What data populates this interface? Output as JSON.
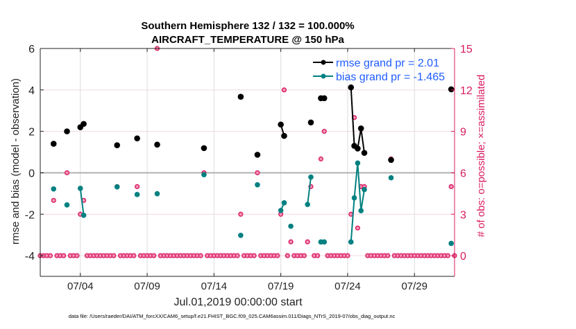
{
  "chart_data": {
    "type": "line",
    "title_line1": "Southern Hemisphere 132 / 132 = 100.000%",
    "title_line2": "AIRCRAFT_TEMPERATURE @ 150 hPa",
    "xlabel": "Jul.01,2019 00:00:00 start",
    "ylabel_left": "rmse and bias (model - observation)",
    "ylabel_right": "# of obs: o=possible; ×=assimilated",
    "footnote": "data file: /Users/raeder/DAI/ATM_forcXX/CAM6_setup/f.e21.FHIST_BGC.f09_025.CAM6assim.011/Diags_NTrS_2019-07/obs_diag_output.nc",
    "x_range": [
      "07/01 00",
      "08/01 00"
    ],
    "x_ticks": [
      "07/04",
      "07/09",
      "07/14",
      "07/19",
      "07/24",
      "07/29"
    ],
    "ylim_left": [
      -5,
      6
    ],
    "yticks_left": [
      "6",
      "4",
      "2",
      "0",
      "-2",
      "-4"
    ],
    "ylim_right": [
      -1.5,
      15
    ],
    "yticks_right": [
      "15",
      "12",
      "9",
      "6",
      "3",
      "0"
    ],
    "grid": true,
    "legend_position": "top-right",
    "colors": {
      "rmse": "#000000",
      "bias": "#008080",
      "obs": "#d81b60",
      "legend_text": "#1f5cff",
      "zero_line": "#b0b0b0"
    },
    "series": [
      {
        "name": "rmse grand pr = 2.01",
        "key": "rmse",
        "points": [
          [
            "07/02 00",
            1.4
          ],
          [
            "07/03 00",
            2.0
          ],
          [
            "07/04 00",
            2.2
          ],
          [
            "07/04 06",
            2.36
          ],
          [
            "07/06 18",
            1.33
          ],
          [
            "07/08 06",
            1.66
          ],
          [
            "07/09 18",
            1.36
          ],
          [
            "07/13 06",
            1.19
          ],
          [
            "07/16 00",
            3.67
          ],
          [
            "07/17 06",
            0.87
          ],
          [
            "07/19 00",
            2.33
          ],
          [
            "07/19 06",
            1.78
          ],
          [
            "07/21 06",
            2.43
          ],
          [
            "07/22 00",
            3.6
          ],
          [
            "07/22 06",
            3.6
          ],
          [
            "07/24 06",
            4.12
          ],
          [
            "07/24 12",
            1.3
          ],
          [
            "07/24 18",
            1.17
          ],
          [
            "07/25 00",
            2.14
          ],
          [
            "07/25 06",
            0.96
          ],
          [
            "07/27 06",
            0.62
          ],
          [
            "07/31 18",
            4.03
          ]
        ]
      },
      {
        "name": "bias grand pr = -1.465",
        "key": "bias",
        "points": [
          [
            "07/02 00",
            -0.78
          ],
          [
            "07/03 00",
            -1.55
          ],
          [
            "07/04 00",
            -0.75
          ],
          [
            "07/04 06",
            -2.05
          ],
          [
            "07/06 18",
            -0.68
          ],
          [
            "07/08 06",
            -1.05
          ],
          [
            "07/09 18",
            -1.01
          ],
          [
            "07/13 06",
            -0.09
          ],
          [
            "07/16 00",
            -3.02
          ],
          [
            "07/17 06",
            -0.58
          ],
          [
            "07/19 00",
            -1.82
          ],
          [
            "07/19 06",
            -1.45
          ],
          [
            "07/19 18",
            -2.58
          ],
          [
            "07/21 00",
            -1.53
          ],
          [
            "07/21 06",
            -0.21
          ],
          [
            "07/22 00",
            -3.34
          ],
          [
            "07/22 06",
            -3.34
          ],
          [
            "07/24 06",
            -3.34
          ],
          [
            "07/24 12",
            -1.21
          ],
          [
            "07/24 18",
            0.47
          ],
          [
            "07/25 00",
            -1.83
          ],
          [
            "07/25 06",
            -0.81
          ],
          [
            "07/27 06",
            -0.24
          ],
          [
            "07/31 18",
            -3.41
          ]
        ]
      },
      {
        "key": "obs",
        "axis": "right",
        "start": "07/01 00",
        "step_hours": 6,
        "values": [
          0,
          0,
          0,
          0,
          4,
          0,
          0,
          0,
          6,
          0,
          0,
          0,
          3,
          4,
          0,
          0,
          0,
          0,
          0,
          0,
          0,
          0,
          0,
          5,
          0,
          0,
          0,
          0,
          0,
          5,
          0,
          0,
          0,
          0,
          0,
          15,
          0,
          0,
          0,
          0,
          0,
          0,
          0,
          0,
          0,
          0,
          0,
          0,
          0,
          6,
          0,
          0,
          0,
          0,
          0,
          0,
          0,
          0,
          0,
          0,
          3,
          0,
          0,
          0,
          0,
          6,
          0,
          0,
          0,
          0,
          0,
          0,
          3,
          12,
          0,
          1,
          0,
          0,
          0,
          0,
          1,
          5,
          0,
          0,
          7,
          9,
          0,
          0,
          0,
          0,
          0,
          0,
          0,
          3,
          10,
          2,
          5,
          5,
          0,
          0,
          0,
          0,
          0,
          0,
          0,
          7,
          0,
          0,
          0,
          0,
          0,
          0,
          0,
          0,
          0,
          0,
          0,
          0,
          0,
          0,
          0,
          0,
          0,
          5,
          0
        ]
      }
    ]
  }
}
